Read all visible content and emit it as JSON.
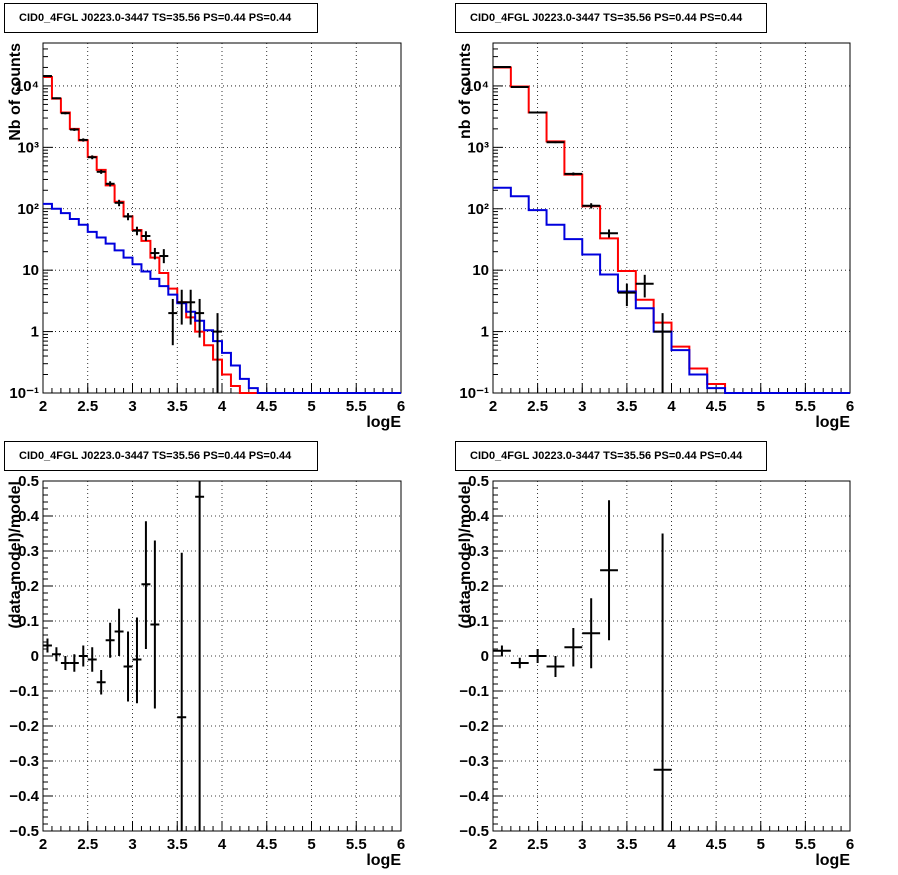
{
  "colors": {
    "model_total": "#ff0000",
    "model_background": "#0000dd",
    "data": "#000000",
    "grid": "#000000"
  },
  "chart_data": [
    {
      "type": "line",
      "title": "CID0_4FGL J0223.0-3447 TS=35.56 PS=0.44 PS=0.44",
      "xlabel": "logE",
      "ylabel": "Nb of counts",
      "xlim": [
        2,
        6
      ],
      "ylim": [
        0.1,
        50000
      ],
      "yscale": "log",
      "grid": true,
      "xticks": [
        "2",
        "2.5",
        "3",
        "3.5",
        "4",
        "4.5",
        "5",
        "5.5",
        "6"
      ],
      "yticks": [
        {
          "value": 0.1,
          "label": "10⁻¹"
        },
        {
          "value": 1,
          "label": "1"
        },
        {
          "value": 10,
          "label": "10"
        },
        {
          "value": 100,
          "label": "10²"
        },
        {
          "value": 1000,
          "label": "10³"
        },
        {
          "value": 10000,
          "label": "10⁴"
        }
      ],
      "bin_edges": [
        2.0,
        2.1,
        2.2,
        2.3,
        2.4,
        2.5,
        2.6,
        2.7,
        2.8,
        2.9,
        3.0,
        3.1,
        3.2,
        3.3,
        3.4,
        3.5,
        3.6,
        3.7,
        3.8,
        3.9,
        4.0,
        4.1,
        4.2,
        4.3,
        4.4,
        4.5,
        4.6,
        4.7,
        4.8,
        4.9,
        5.0,
        5.1,
        5.2,
        5.3,
        5.4,
        5.5,
        5.6,
        5.7,
        5.8,
        5.9,
        6.0
      ],
      "series": [
        {
          "values": [
            14000,
            6200,
            3700,
            2000,
            1300,
            700,
            430,
            240,
            130,
            75,
            45,
            30,
            16,
            9,
            5,
            3,
            1.7,
            1.0,
            0.6,
            0.35,
            0.2,
            0.13,
            0.1,
            0.1,
            0.1,
            0.1,
            0.1,
            0.1,
            0.1,
            0.1,
            0.1,
            0.1,
            0.1,
            0.1,
            0.1,
            0.1,
            0.1,
            0.1,
            0.1,
            0.1
          ],
          "color": "#ff0000"
        },
        {
          "values": [
            120,
            100,
            85,
            68,
            55,
            42,
            34,
            27,
            21,
            16,
            12.5,
            9.5,
            7.2,
            5.5,
            4.0,
            2.9,
            2.1,
            1.5,
            1.05,
            0.7,
            0.45,
            0.28,
            0.17,
            0.12,
            0.1,
            0.1,
            0.1,
            0.1,
            0.1,
            0.1,
            0.1,
            0.1,
            0.1,
            0.1,
            0.1,
            0.1,
            0.1,
            0.1,
            0.1,
            0.1
          ],
          "color": "#0000dd"
        }
      ],
      "points": [
        {
          "x": 2.05,
          "y": 14500,
          "lo": 14200,
          "hi": 14800
        },
        {
          "x": 2.15,
          "y": 6300,
          "lo": 6100,
          "hi": 6500
        },
        {
          "x": 2.25,
          "y": 3600,
          "lo": 3450,
          "hi": 3750
        },
        {
          "x": 2.35,
          "y": 1950,
          "lo": 1850,
          "hi": 2050
        },
        {
          "x": 2.45,
          "y": 1320,
          "lo": 1240,
          "hi": 1400
        },
        {
          "x": 2.55,
          "y": 690,
          "lo": 640,
          "hi": 740
        },
        {
          "x": 2.65,
          "y": 400,
          "lo": 370,
          "hi": 430
        },
        {
          "x": 2.75,
          "y": 255,
          "lo": 230,
          "hi": 280
        },
        {
          "x": 2.85,
          "y": 125,
          "lo": 110,
          "hi": 140
        },
        {
          "x": 2.95,
          "y": 75,
          "lo": 65,
          "hi": 85
        },
        {
          "x": 3.05,
          "y": 44,
          "lo": 37,
          "hi": 51
        },
        {
          "x": 3.15,
          "y": 36,
          "lo": 30,
          "hi": 43
        },
        {
          "x": 3.25,
          "y": 19,
          "lo": 15,
          "hi": 23
        },
        {
          "x": 3.35,
          "y": 17,
          "lo": 13,
          "hi": 22
        },
        {
          "x": 3.45,
          "y": 2.0,
          "lo": 0.6,
          "hi": 3.4
        },
        {
          "x": 3.55,
          "y": 3.0,
          "lo": 1.3,
          "hi": 4.8
        },
        {
          "x": 3.65,
          "y": 3.0,
          "lo": 1.3,
          "hi": 4.8
        },
        {
          "x": 3.75,
          "y": 2.0,
          "lo": 0.8,
          "hi": 3.4
        },
        {
          "x": 3.95,
          "y": 1.0,
          "lo": 0.1,
          "hi": 2.0
        }
      ]
    },
    {
      "type": "line",
      "title": "CID0_4FGL J0223.0-3447 TS=35.56 PS=0.44 PS=0.44",
      "xlabel": "logE",
      "ylabel": "nb of counts",
      "xlim": [
        2,
        6
      ],
      "ylim": [
        0.1,
        50000
      ],
      "yscale": "log",
      "grid": true,
      "xticks": [
        "2",
        "2.5",
        "3",
        "3.5",
        "4",
        "4.5",
        "5",
        "5.5",
        "6"
      ],
      "yticks": [
        {
          "value": 0.1,
          "label": "10⁻¹"
        },
        {
          "value": 1,
          "label": "1"
        },
        {
          "value": 10,
          "label": "10"
        },
        {
          "value": 100,
          "label": "10²"
        },
        {
          "value": 1000,
          "label": "10³"
        },
        {
          "value": 10000,
          "label": "10⁴"
        }
      ],
      "bin_edges": [
        2.0,
        2.2,
        2.4,
        2.6,
        2.8,
        3.0,
        3.2,
        3.4,
        3.6,
        3.8,
        4.0,
        4.2,
        4.4,
        4.6,
        4.8,
        5.0,
        5.2,
        5.4,
        5.6,
        5.8,
        6.0
      ],
      "series": [
        {
          "values": [
            20000,
            9800,
            3700,
            1250,
            360,
            110,
            33,
            9.7,
            3.3,
            1.4,
            0.57,
            0.25,
            0.14,
            0.1,
            0.1,
            0.1,
            0.1,
            0.1,
            0.1,
            0.1
          ],
          "color": "#ff0000"
        },
        {
          "values": [
            220,
            160,
            95,
            55,
            32,
            18,
            8.5,
            4.5,
            2.4,
            1.0,
            0.5,
            0.2,
            0.12,
            0.1,
            0.1,
            0.1,
            0.1,
            0.1,
            0.1,
            0.1
          ],
          "color": "#0000dd"
        }
      ],
      "points": [
        {
          "x": 2.1,
          "y": 20300,
          "lo": 20000,
          "hi": 20600
        },
        {
          "x": 2.3,
          "y": 9600,
          "lo": 9400,
          "hi": 9800
        },
        {
          "x": 2.5,
          "y": 3700,
          "lo": 3600,
          "hi": 3800
        },
        {
          "x": 2.7,
          "y": 1210,
          "lo": 1170,
          "hi": 1250
        },
        {
          "x": 2.9,
          "y": 370,
          "lo": 350,
          "hi": 390
        },
        {
          "x": 3.1,
          "y": 112,
          "lo": 101,
          "hi": 123
        },
        {
          "x": 3.3,
          "y": 40,
          "lo": 34,
          "hi": 46
        },
        {
          "x": 3.5,
          "y": 4.3,
          "lo": 2.6,
          "hi": 6.0
        },
        {
          "x": 3.7,
          "y": 6.0,
          "lo": 3.6,
          "hi": 8.4
        },
        {
          "x": 3.9,
          "y": 1.0,
          "lo": 0.1,
          "hi": 2.0
        }
      ]
    },
    {
      "type": "scatter",
      "title": "CID0_4FGL J0223.0-3447 TS=35.56 PS=0.44 PS=0.44",
      "xlabel": "logE",
      "ylabel": "(data-model)/model",
      "xlim": [
        2,
        6
      ],
      "ylim": [
        -0.5,
        0.5
      ],
      "yscale": "linear",
      "grid": true,
      "xticks": [
        "2",
        "2.5",
        "3",
        "3.5",
        "4",
        "4.5",
        "5",
        "5.5",
        "6"
      ],
      "yticks": [
        {
          "value": -0.5,
          "label": "−0.5"
        },
        {
          "value": -0.4,
          "label": "−0.4"
        },
        {
          "value": -0.3,
          "label": "−0.3"
        },
        {
          "value": -0.2,
          "label": "−0.2"
        },
        {
          "value": -0.1,
          "label": "−0.1"
        },
        {
          "value": 0,
          "label": "0"
        },
        {
          "value": 0.1,
          "label": "0.1"
        },
        {
          "value": 0.2,
          "label": "0.2"
        },
        {
          "value": 0.3,
          "label": "0.3"
        },
        {
          "value": 0.4,
          "label": "0.4"
        },
        {
          "value": 0.5,
          "label": "0.5"
        }
      ],
      "xerr": 0.05,
      "points": [
        {
          "x": 2.05,
          "y": 0.03,
          "lo": 0.01,
          "hi": 0.05
        },
        {
          "x": 2.15,
          "y": 0.005,
          "lo": -0.015,
          "hi": 0.025
        },
        {
          "x": 2.25,
          "y": -0.02,
          "lo": -0.04,
          "hi": 0.0
        },
        {
          "x": 2.35,
          "y": -0.02,
          "lo": -0.045,
          "hi": 0.005
        },
        {
          "x": 2.45,
          "y": 0.0,
          "lo": -0.03,
          "hi": 0.03
        },
        {
          "x": 2.55,
          "y": -0.01,
          "lo": -0.045,
          "hi": 0.025
        },
        {
          "x": 2.65,
          "y": -0.075,
          "lo": -0.11,
          "hi": -0.04
        },
        {
          "x": 2.75,
          "y": 0.045,
          "lo": -0.005,
          "hi": 0.095
        },
        {
          "x": 2.85,
          "y": 0.07,
          "lo": 0.0,
          "hi": 0.135
        },
        {
          "x": 2.95,
          "y": -0.03,
          "lo": -0.13,
          "hi": 0.07
        },
        {
          "x": 3.05,
          "y": -0.01,
          "lo": -0.135,
          "hi": 0.11
        },
        {
          "x": 3.15,
          "y": 0.205,
          "lo": 0.02,
          "hi": 0.385
        },
        {
          "x": 3.25,
          "y": 0.09,
          "lo": -0.15,
          "hi": 0.33
        },
        {
          "x": 3.55,
          "y": -0.175,
          "lo": -0.5,
          "hi": 0.295
        },
        {
          "x": 3.75,
          "y": 0.455,
          "lo": -0.5,
          "hi": 0.5
        }
      ]
    },
    {
      "type": "scatter",
      "title": "CID0_4FGL J0223.0-3447 TS=35.56 PS=0.44 PS=0.44",
      "xlabel": "logE",
      "ylabel": "(data-model)/model",
      "xlim": [
        2,
        6
      ],
      "ylim": [
        -0.5,
        0.5
      ],
      "yscale": "linear",
      "grid": true,
      "xticks": [
        "2",
        "2.5",
        "3",
        "3.5",
        "4",
        "4.5",
        "5",
        "5.5",
        "6"
      ],
      "yticks": [
        {
          "value": -0.5,
          "label": "−0.5"
        },
        {
          "value": -0.4,
          "label": "−0.4"
        },
        {
          "value": -0.3,
          "label": "−0.3"
        },
        {
          "value": -0.2,
          "label": "−0.2"
        },
        {
          "value": -0.1,
          "label": "−0.1"
        },
        {
          "value": 0,
          "label": "0"
        },
        {
          "value": 0.1,
          "label": "0.1"
        },
        {
          "value": 0.2,
          "label": "0.2"
        },
        {
          "value": 0.3,
          "label": "0.3"
        },
        {
          "value": 0.4,
          "label": "0.4"
        },
        {
          "value": 0.5,
          "label": "0.5"
        }
      ],
      "xerr": 0.1,
      "points": [
        {
          "x": 2.1,
          "y": 0.015,
          "lo": 0.0,
          "hi": 0.03
        },
        {
          "x": 2.3,
          "y": -0.02,
          "lo": -0.035,
          "hi": -0.005
        },
        {
          "x": 2.5,
          "y": 0.0,
          "lo": -0.02,
          "hi": 0.02
        },
        {
          "x": 2.7,
          "y": -0.03,
          "lo": -0.06,
          "hi": 0.0
        },
        {
          "x": 2.9,
          "y": 0.025,
          "lo": -0.03,
          "hi": 0.08
        },
        {
          "x": 3.1,
          "y": 0.065,
          "lo": -0.035,
          "hi": 0.165
        },
        {
          "x": 3.3,
          "y": 0.245,
          "lo": 0.045,
          "hi": 0.445
        },
        {
          "x": 3.9,
          "y": -0.325,
          "lo": -0.5,
          "hi": 0.35
        }
      ]
    }
  ]
}
